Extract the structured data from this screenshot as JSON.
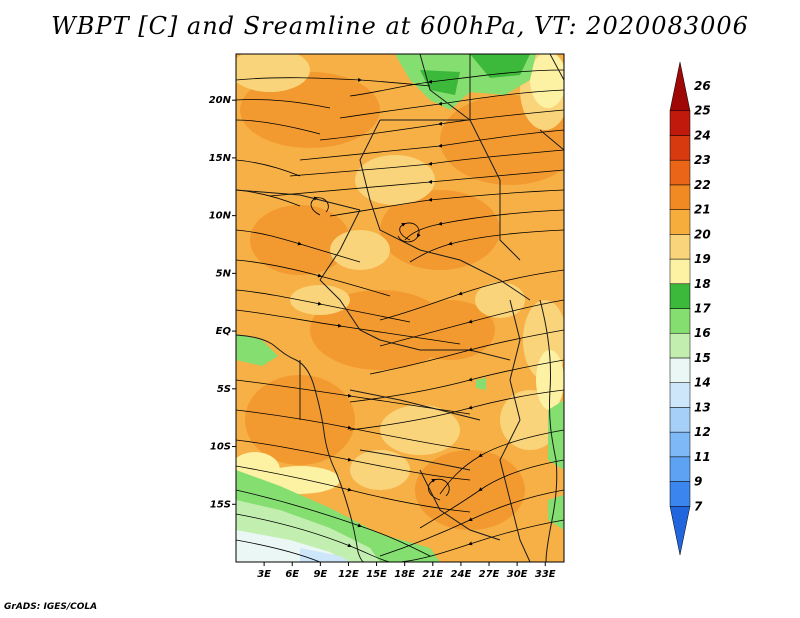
{
  "title": "WBPT [C] and Sreamline at 600hPa, VT: 2020083006",
  "credit": "GrADS: IGES/COLA",
  "map": {
    "lat_labels": [
      "20N",
      "15N",
      "10N",
      "5N",
      "EQ",
      "5S",
      "10S",
      "15S"
    ],
    "lon_labels": [
      "3E",
      "6E",
      "9E",
      "12E",
      "15E",
      "18E",
      "21E",
      "24E",
      "27E",
      "30E",
      "33E"
    ],
    "lon_range": [
      0,
      35
    ],
    "lat_range": [
      -20,
      24
    ]
  },
  "colorbar": {
    "labels": [
      "7",
      "9",
      "11",
      "12",
      "13",
      "14",
      "15",
      "16",
      "17",
      "18",
      "19",
      "20",
      "21",
      "22",
      "23",
      "24",
      "25",
      "26"
    ],
    "colors": [
      "#2266dd",
      "#3a86ee",
      "#5ea2f4",
      "#7fb8f6",
      "#a6d0f8",
      "#cde6fa",
      "#eaf7f4",
      "#c2efb0",
      "#85de70",
      "#3cb83a",
      "#fdf2a4",
      "#fad47a",
      "#f6ad3c",
      "#f28a24",
      "#ea6518",
      "#d83a10",
      "#c11a0c",
      "#a00808"
    ]
  }
}
